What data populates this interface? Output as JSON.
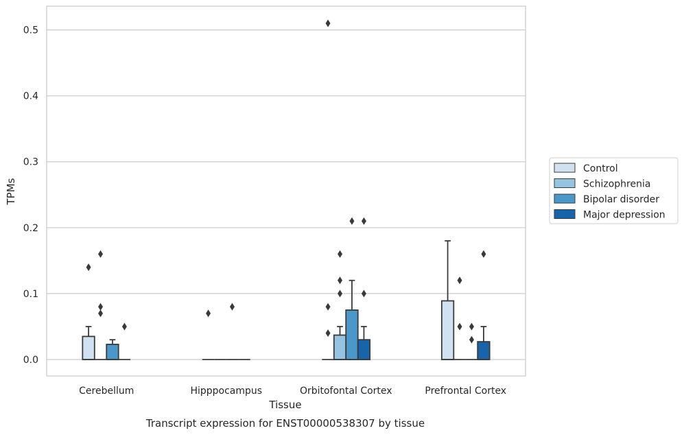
{
  "chart_data": {
    "type": "box",
    "title": "",
    "caption": "Transcript expression for ENST00000538307 by tissue",
    "xlabel": "Tissue",
    "ylabel": "TPMs",
    "ylim": [
      -0.025,
      0.536
    ],
    "yticks": [
      0.0,
      0.1,
      0.2,
      0.3,
      0.4,
      0.5
    ],
    "ytick_labels": [
      "0.0",
      "0.1",
      "0.2",
      "0.3",
      "0.4",
      "0.5"
    ],
    "grid": "y",
    "legend_position": "right",
    "categories": [
      "Cerebellum",
      "Hipppocampus",
      "Orbitofontal Cortex",
      "Prefrontal Cortex"
    ],
    "series": [
      {
        "name": "Control",
        "color": "#d0e1f2",
        "boxes": [
          {
            "q1": 0.0,
            "median": 0.0,
            "q3": 0.035,
            "whislo": 0.0,
            "whishi": 0.05,
            "fliers": [
              0.14
            ]
          },
          {
            "q1": 0.0,
            "median": 0.0,
            "q3": 0.0,
            "whislo": 0.0,
            "whishi": 0.0,
            "fliers": [
              0.07
            ]
          },
          {
            "q1": 0.0,
            "median": 0.0,
            "q3": 0.0,
            "whislo": 0.0,
            "whishi": 0.0,
            "fliers": [
              0.51,
              0.08,
              0.04
            ]
          },
          {
            "q1": 0.0,
            "median": 0.0,
            "q3": 0.089,
            "whislo": 0.0,
            "whishi": 0.18,
            "fliers": []
          }
        ]
      },
      {
        "name": "Schizophrenia",
        "color": "#94c4df",
        "boxes": [
          {
            "q1": 0.0,
            "median": 0.0,
            "q3": 0.0,
            "whislo": 0.0,
            "whishi": 0.0,
            "fliers": [
              0.16,
              0.08,
              0.07
            ]
          },
          {
            "q1": 0.0,
            "median": 0.0,
            "q3": 0.0,
            "whislo": 0.0,
            "whishi": 0.0,
            "fliers": []
          },
          {
            "q1": 0.0,
            "median": 0.0,
            "q3": 0.037,
            "whislo": 0.0,
            "whishi": 0.05,
            "fliers": [
              0.16,
              0.12,
              0.1
            ]
          },
          {
            "q1": 0.0,
            "median": 0.0,
            "q3": 0.0,
            "whislo": 0.0,
            "whishi": 0.0,
            "fliers": [
              0.12,
              0.05
            ]
          }
        ]
      },
      {
        "name": "Bipolar disorder",
        "color": "#4a98c9",
        "boxes": [
          {
            "q1": 0.0,
            "median": 0.0,
            "q3": 0.023,
            "whislo": 0.0,
            "whishi": 0.03,
            "fliers": []
          },
          {
            "q1": 0.0,
            "median": 0.0,
            "q3": 0.0,
            "whislo": 0.0,
            "whishi": 0.0,
            "fliers": [
              0.08
            ]
          },
          {
            "q1": 0.0,
            "median": 0.0,
            "q3": 0.075,
            "whislo": 0.0,
            "whishi": 0.12,
            "fliers": [
              0.21
            ]
          },
          {
            "q1": 0.0,
            "median": 0.0,
            "q3": 0.0,
            "whislo": 0.0,
            "whishi": 0.0,
            "fliers": [
              0.05,
              0.03
            ]
          }
        ]
      },
      {
        "name": "Major depression",
        "color": "#1764ab",
        "boxes": [
          {
            "q1": 0.0,
            "median": 0.0,
            "q3": 0.0,
            "whislo": 0.0,
            "whishi": 0.0,
            "fliers": [
              0.05
            ]
          },
          {
            "q1": 0.0,
            "median": 0.0,
            "q3": 0.0,
            "whislo": 0.0,
            "whishi": 0.0,
            "fliers": []
          },
          {
            "q1": 0.0,
            "median": 0.0,
            "q3": 0.03,
            "whislo": 0.0,
            "whishi": 0.05,
            "fliers": [
              0.21,
              0.1
            ]
          },
          {
            "q1": 0.0,
            "median": 0.0,
            "q3": 0.027,
            "whislo": 0.0,
            "whishi": 0.05,
            "fliers": [
              0.16
            ]
          }
        ]
      }
    ]
  }
}
